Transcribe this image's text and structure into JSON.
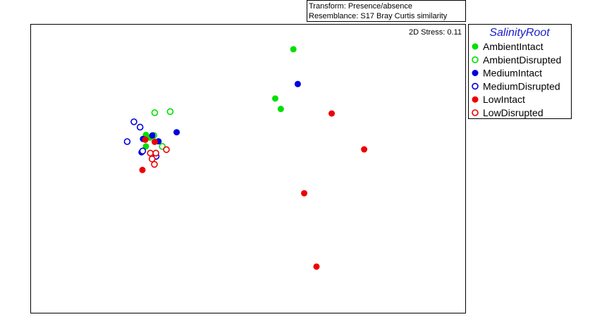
{
  "header": {
    "transform": "Transform: Presence/absence",
    "resemblance": "Resemblance: S17 Bray Curtis similarity"
  },
  "chart_data": {
    "type": "scatter",
    "title": "",
    "xlabel": "",
    "ylabel": "",
    "grid": false,
    "stress_label": "2D Stress: 0.11",
    "legend": {
      "title": "SalinityRoot",
      "placement": "right"
    },
    "series": [
      {
        "name": "AmbientIntact",
        "color": "#00e000",
        "marker": "filled-circle",
        "points": [
          [
            0.545,
            0.895
          ],
          [
            0.483,
            0.711
          ],
          [
            0.502,
            0.672
          ],
          [
            0.041,
            0.575
          ],
          [
            0.055,
            0.565
          ],
          [
            0.041,
            0.532
          ]
        ]
      },
      {
        "name": "AmbientDisrupted",
        "color": "#00e000",
        "marker": "open-circle",
        "points": [
          [
            0.071,
            0.658
          ],
          [
            0.124,
            0.662
          ],
          [
            0.068,
            0.573
          ],
          [
            0.097,
            0.532
          ]
        ]
      },
      {
        "name": "MediumIntact",
        "color": "#0000dd",
        "marker": "filled-circle",
        "points": [
          [
            0.56,
            0.765
          ],
          [
            0.146,
            0.585
          ],
          [
            0.063,
            0.573
          ],
          [
            0.031,
            0.56
          ],
          [
            0.084,
            0.551
          ],
          [
            0.026,
            0.51
          ]
        ]
      },
      {
        "name": "MediumDisrupted",
        "color": "#0000dd",
        "marker": "open-circle",
        "points": [
          [
            0.0,
            0.624
          ],
          [
            0.021,
            0.604
          ],
          [
            -0.023,
            0.55
          ],
          [
            0.03,
            0.515
          ],
          [
            0.076,
            0.495
          ]
        ]
      },
      {
        "name": "LowIntact",
        "color": "#ee0000",
        "marker": "filled-circle",
        "points": [
          [
            0.676,
            0.655
          ],
          [
            0.787,
            0.521
          ],
          [
            0.039,
            0.557
          ],
          [
            0.071,
            0.549
          ],
          [
            0.029,
            0.444
          ],
          [
            0.582,
            0.357
          ],
          [
            0.624,
            0.083
          ]
        ]
      },
      {
        "name": "LowDisrupted",
        "color": "#ee0000",
        "marker": "open-circle",
        "points": [
          [
            0.111,
            0.52
          ],
          [
            0.056,
            0.507
          ],
          [
            0.075,
            0.507
          ],
          [
            0.062,
            0.485
          ],
          [
            0.07,
            0.465
          ]
        ]
      }
    ]
  }
}
